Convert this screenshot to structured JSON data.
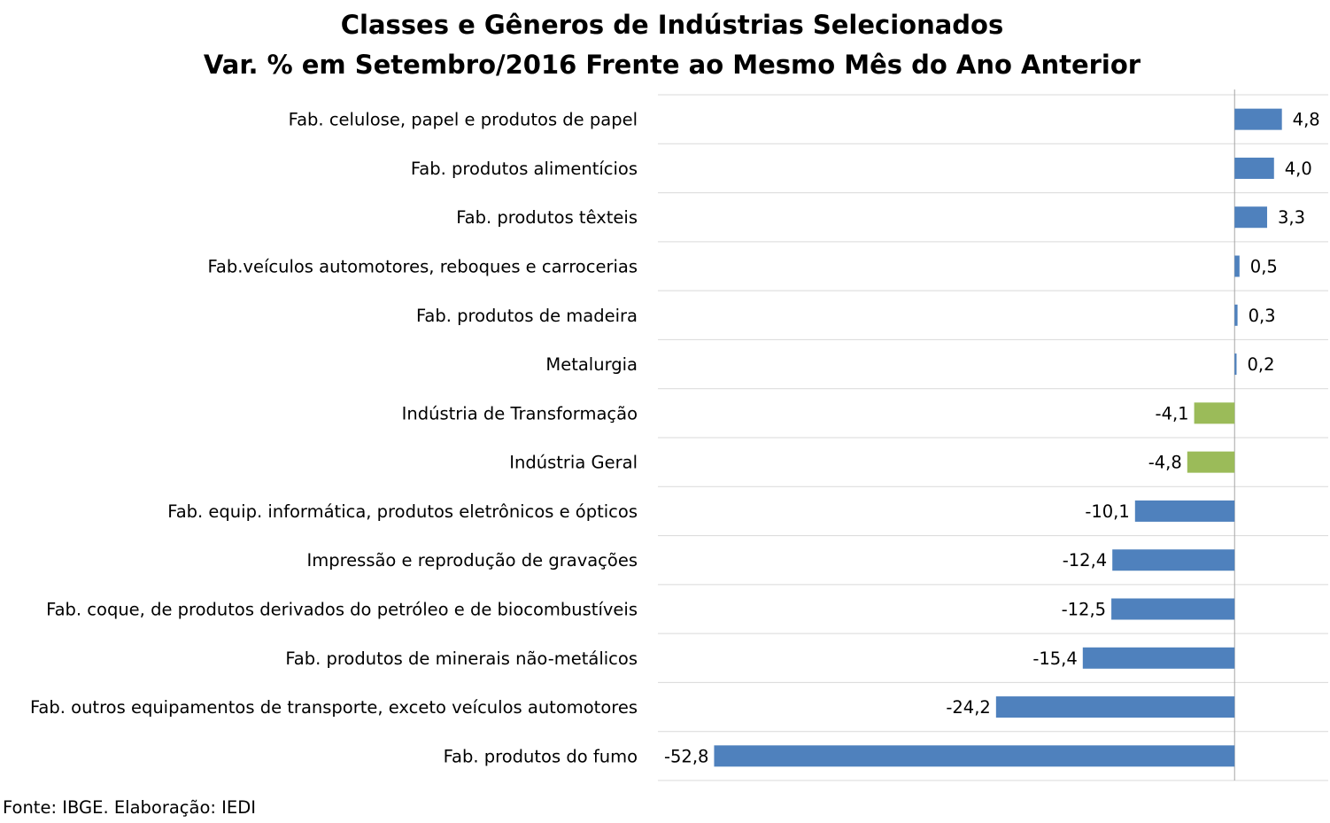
{
  "chart_data": {
    "type": "bar",
    "orientation": "horizontal",
    "title": "Classes e Gêneros de Indústrias Selecionados",
    "subtitle": "Var. % em Setembro/2016 Frente ao Mesmo Mês do Ano Anterior",
    "categories": [
      "Fab. celulose, papel e produtos de papel",
      "Fab. produtos alimentícios",
      "Fab. produtos têxteis",
      "Fab.veículos automotores, reboques e carrocerias",
      "Fab. produtos de madeira",
      "Metalurgia",
      "Indústria de Transformação",
      "Indústria Geral",
      "Fab. equip. informática, produtos eletrônicos e ópticos",
      "Impressão e reprodução de gravações",
      "Fab. coque, de produtos derivados do petróleo e de biocombustíveis",
      "Fab. produtos de minerais não-metálicos",
      "Fab. outros equipamentos de transporte, exceto veículos automotores",
      "Fab. produtos do fumo"
    ],
    "values": [
      4.8,
      4.0,
      3.3,
      0.5,
      0.3,
      0.2,
      -4.1,
      -4.8,
      -10.1,
      -12.4,
      -12.5,
      -15.4,
      -24.2,
      -52.8
    ],
    "value_labels": [
      "4,8",
      "4,0",
      "3,3",
      "0,5",
      "0,3",
      "0,2",
      "-4,1",
      "-4,8",
      "-10,1",
      "-12,4",
      "-12,5",
      "-15,4",
      "-24,2",
      "-52,8"
    ],
    "bar_colors": [
      "#4f81bd",
      "#4f81bd",
      "#4f81bd",
      "#4f81bd",
      "#4f81bd",
      "#4f81bd",
      "#9bbb59",
      "#9bbb59",
      "#4f81bd",
      "#4f81bd",
      "#4f81bd",
      "#4f81bd",
      "#4f81bd",
      "#4f81bd"
    ],
    "xlim": [
      -58.5,
      9.5
    ],
    "grid": true,
    "legend": "none",
    "xlabel": "",
    "ylabel": ""
  },
  "source": "Fonte: IBGE. Elaboração: IEDI"
}
